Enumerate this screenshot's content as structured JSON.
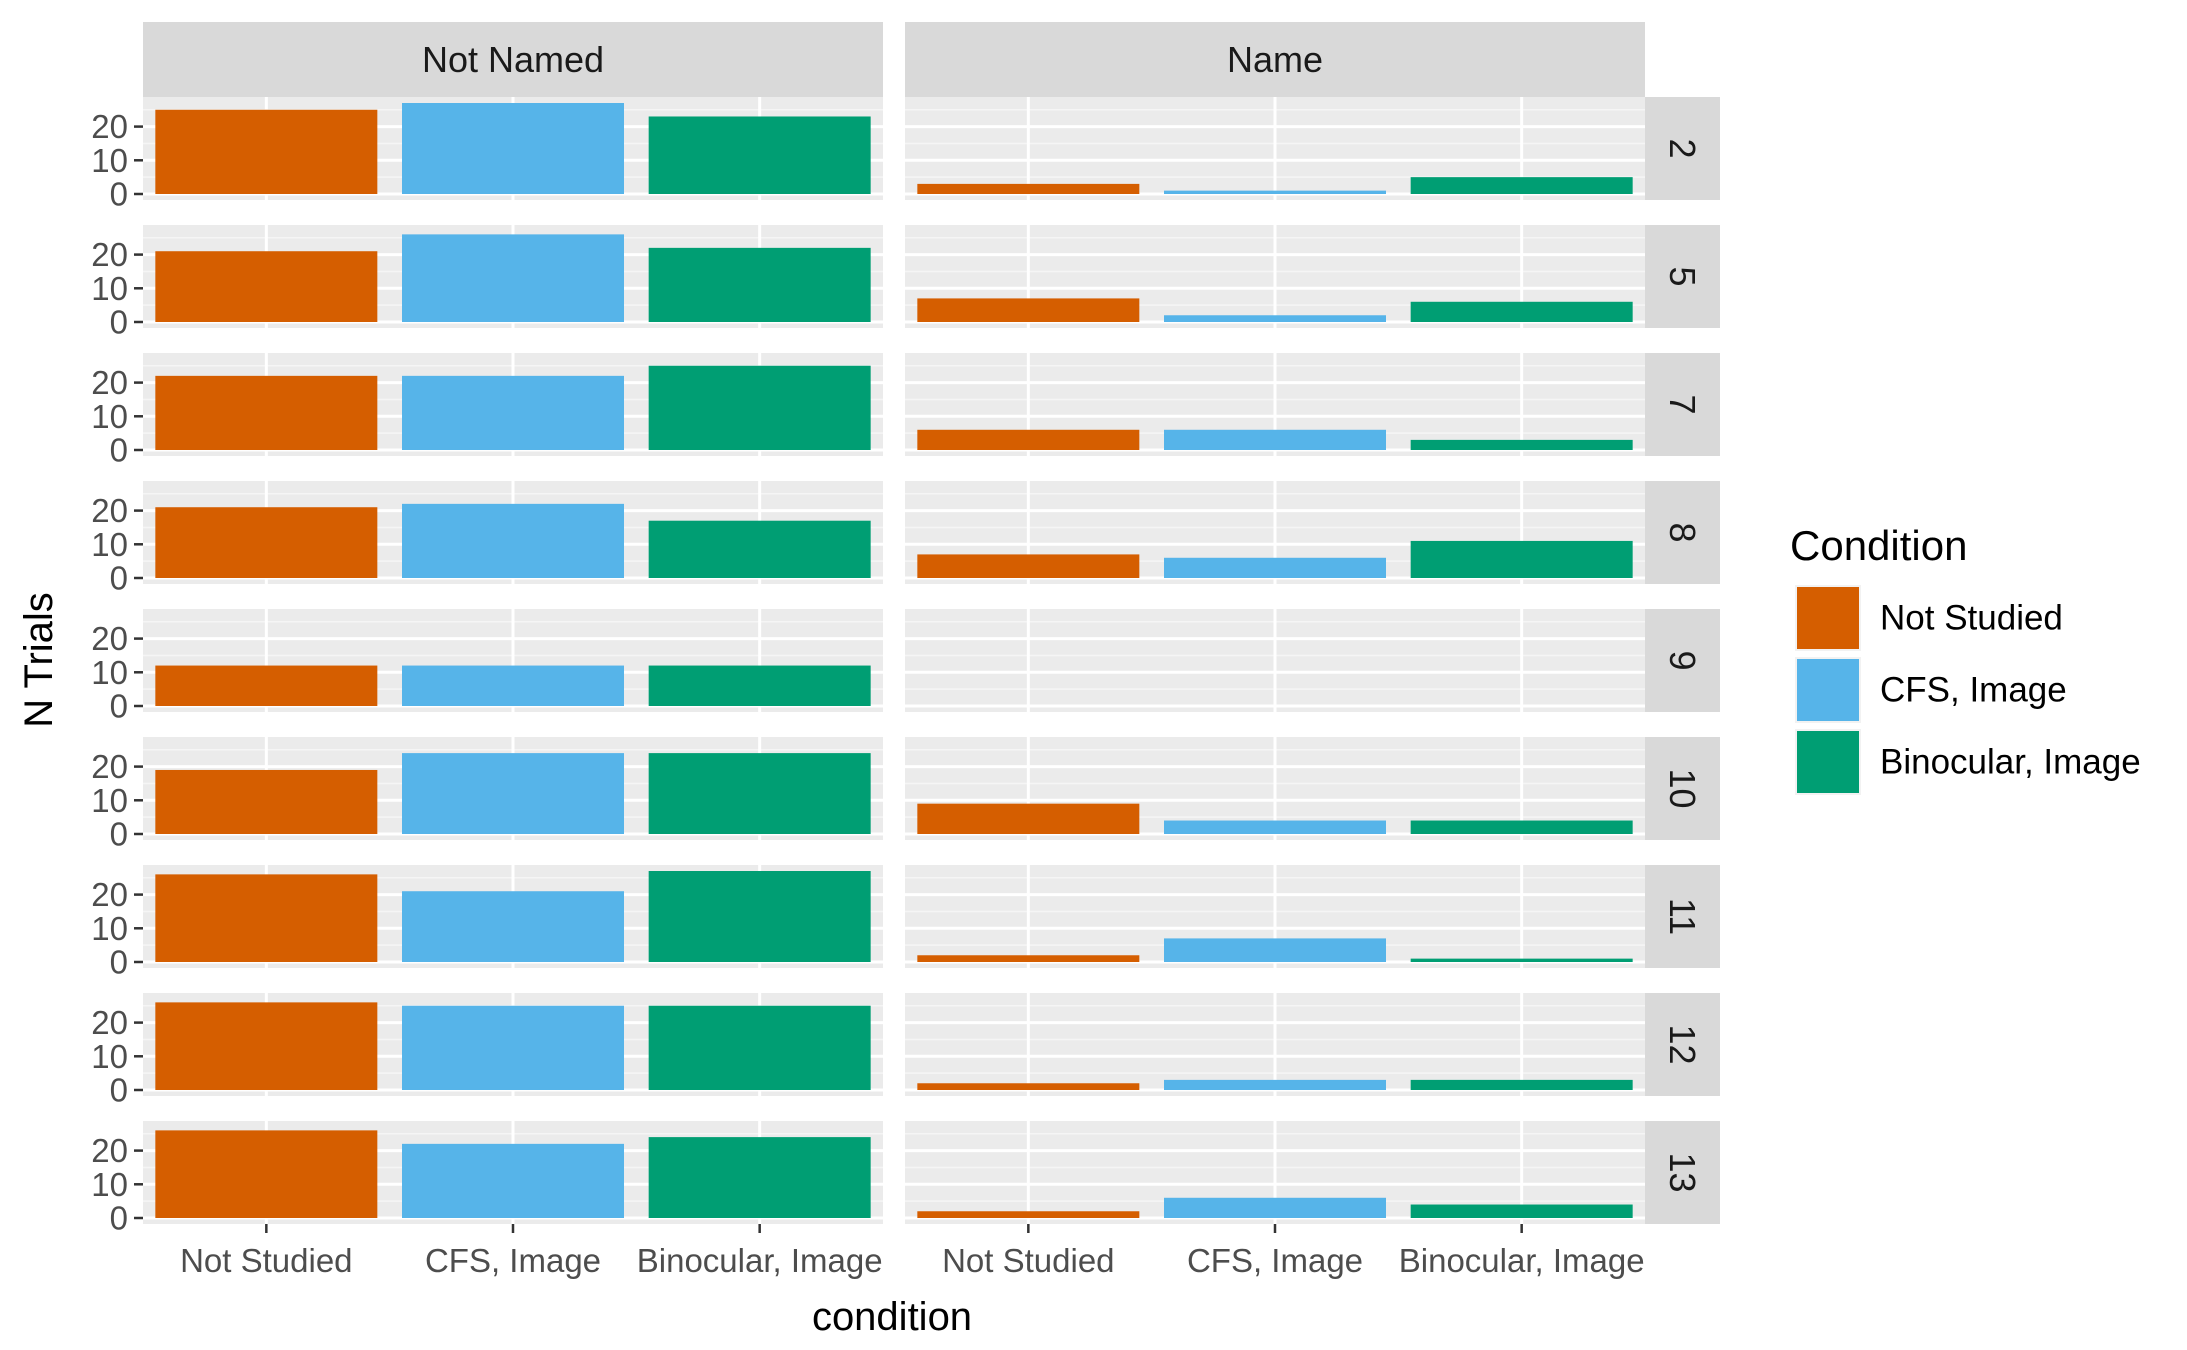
{
  "chart_data": {
    "type": "bar",
    "layout": "facet-grid",
    "xlabel": "condition",
    "ylabel": "N Trials",
    "ylim": [
      0,
      27
    ],
    "yticks": [
      0,
      10,
      20
    ],
    "categories": [
      "Not Studied",
      "CFS, Image",
      "Binocular, Image"
    ],
    "columns": [
      "Not Named",
      "Name"
    ],
    "rows": [
      "2",
      "5",
      "7",
      "8",
      "9",
      "10",
      "11",
      "12",
      "13"
    ],
    "legend": {
      "title": "Condition",
      "position": "right",
      "entries": [
        "Not Studied",
        "CFS, Image",
        "Binocular, Image"
      ]
    },
    "colors": [
      "#d55e00",
      "#56b4e9",
      "#009e73"
    ],
    "panels": [
      {
        "row": "2",
        "column": "Not Named",
        "values": [
          25,
          27,
          23
        ]
      },
      {
        "row": "2",
        "column": "Name",
        "values": [
          3,
          1,
          5
        ]
      },
      {
        "row": "5",
        "column": "Not Named",
        "values": [
          21,
          26,
          22
        ]
      },
      {
        "row": "5",
        "column": "Name",
        "values": [
          7,
          2,
          6
        ]
      },
      {
        "row": "7",
        "column": "Not Named",
        "values": [
          22,
          22,
          25
        ]
      },
      {
        "row": "7",
        "column": "Name",
        "values": [
          6,
          6,
          3
        ]
      },
      {
        "row": "8",
        "column": "Not Named",
        "values": [
          21,
          22,
          17
        ]
      },
      {
        "row": "8",
        "column": "Name",
        "values": [
          7,
          6,
          11
        ]
      },
      {
        "row": "9",
        "column": "Not Named",
        "values": [
          12,
          12,
          12
        ]
      },
      {
        "row": "9",
        "column": "Name",
        "values": [
          0,
          0,
          0
        ]
      },
      {
        "row": "10",
        "column": "Not Named",
        "values": [
          19,
          24,
          24
        ]
      },
      {
        "row": "10",
        "column": "Name",
        "values": [
          9,
          4,
          4
        ]
      },
      {
        "row": "11",
        "column": "Not Named",
        "values": [
          26,
          21,
          27
        ]
      },
      {
        "row": "11",
        "column": "Name",
        "values": [
          2,
          7,
          1
        ]
      },
      {
        "row": "12",
        "column": "Not Named",
        "values": [
          26,
          25,
          25
        ]
      },
      {
        "row": "12",
        "column": "Name",
        "values": [
          2,
          3,
          3
        ]
      },
      {
        "row": "13",
        "column": "Not Named",
        "values": [
          26,
          22,
          24
        ]
      },
      {
        "row": "13",
        "column": "Name",
        "values": [
          2,
          6,
          4
        ]
      }
    ]
  }
}
